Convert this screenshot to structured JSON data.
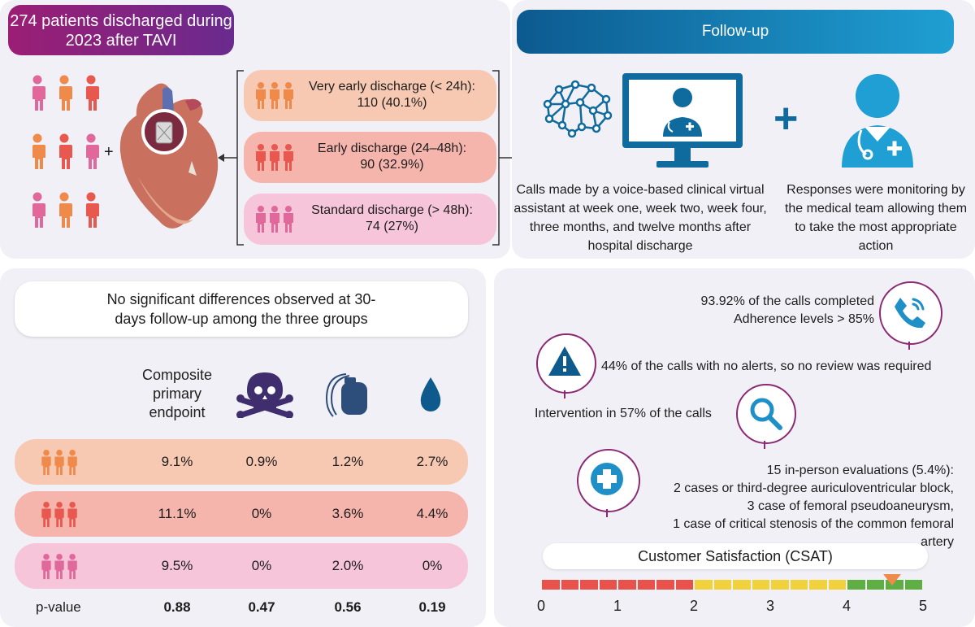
{
  "header": {
    "left_title": "274 patients discharged during 2023 after TAVI",
    "right_title": "Follow-up"
  },
  "discharge_groups": [
    {
      "label": "Very early discharge (< 24h):",
      "value": "110 (40.1%)",
      "color": "#f7c9b3",
      "icon_color": "#f08a4b"
    },
    {
      "label": "Early discharge (24–48h):",
      "value": "90 (32.9%)",
      "color": "#f5b5ad",
      "icon_color": "#e8584f"
    },
    {
      "label": "Standard discharge (> 48h):",
      "value": "74 (27%)",
      "color": "#f6c5d9",
      "icon_color": "#e0689b"
    }
  ],
  "people_plus": "+",
  "followup": {
    "assistant_text": "Calls made by a voice-based clinical virtual assistant at week one, week two, week four, three months, and twelve months after hospital discharge",
    "plus": "+",
    "team_text": "Responses were monitoring by the medical team allowing them to take the most appropriate action"
  },
  "results": {
    "headline": "No significant differences observed at 30-days follow-up among the three groups",
    "columns": [
      "Composite primary endpoint",
      "death-icon",
      "pacemaker-icon",
      "bleeding-icon"
    ],
    "rows": [
      {
        "values": [
          "9.1%",
          "0.9%",
          "1.2%",
          "2.7%"
        ]
      },
      {
        "values": [
          "11.1%",
          "0%",
          "3.6%",
          "4.4%"
        ]
      },
      {
        "values": [
          "9.5%",
          "0%",
          "2.0%",
          "0%"
        ]
      }
    ],
    "pvalue_label": "p-value",
    "pvalues": [
      "0.88",
      "0.47",
      "0.56",
      "0.19"
    ]
  },
  "outcomes": {
    "calls_line1": "93.92% of the calls completed",
    "calls_line2": "Adherence levels > 85%",
    "no_alerts": "44% of the calls with no alerts, so no review was required",
    "intervention": "Intervention in 57% of the calls",
    "eval_line1": "15 in-person evaluations (5.4%):",
    "eval_line2": "2 cases or third-degree auriculoventricular block,",
    "eval_line3": "3 case of femoral pseudoaneurysm,",
    "eval_line4": "1 case of critical stenosis of the common femoral artery"
  },
  "csat": {
    "title": "Customer Satisfaction (CSAT)",
    "ticks": [
      "0",
      "1",
      "2",
      "3",
      "4",
      "5"
    ],
    "score": 4.6,
    "colors": {
      "red": "#e8524a",
      "yellow": "#f2d23c",
      "green": "#5fae44",
      "marker": "#f08a4b"
    }
  }
}
